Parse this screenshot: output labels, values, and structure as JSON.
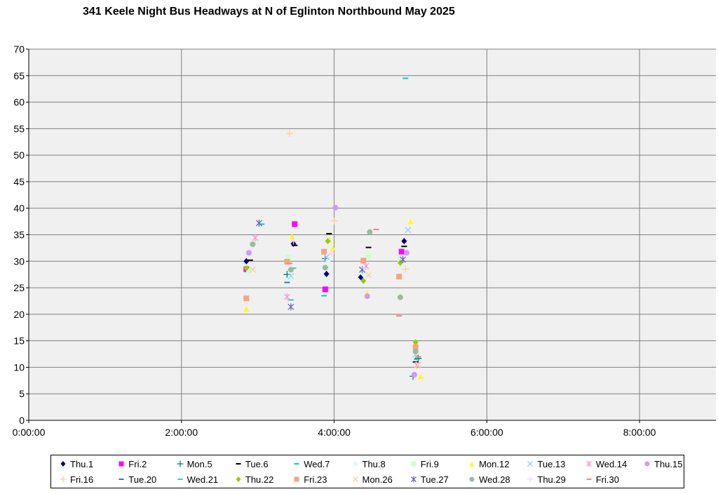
{
  "chart_data": {
    "type": "scatter",
    "title": "341 Keele Night Bus Headways at N of Eglinton Northbound May 2025",
    "xlabel": "",
    "ylabel": "",
    "xlim": [
      "0:00:00",
      "9:00:00"
    ],
    "ylim": [
      0,
      70
    ],
    "x_ticks": [
      "0:00:00",
      "2:00:00",
      "4:00:00",
      "6:00:00",
      "8:00:00"
    ],
    "y_ticks": [
      0,
      5,
      10,
      15,
      20,
      25,
      30,
      35,
      40,
      45,
      50,
      55,
      60,
      65,
      70
    ],
    "grid": true,
    "plot_background": "#f0f0f0",
    "legend_position": "bottom",
    "series": [
      {
        "name": "Thu.1",
        "color": "#000080",
        "marker": "diamond",
        "points": [
          [
            "2:51:00",
            30
          ],
          [
            "3:28:00",
            33.3
          ],
          [
            "3:54:00",
            27.6
          ],
          [
            "4:21:00",
            27
          ],
          [
            "4:55:00",
            33.8
          ]
        ]
      },
      {
        "name": "Fri.2",
        "color": "#ff00ff",
        "marker": "square",
        "points": [
          [
            "2:51:00",
            28.5
          ],
          [
            "3:29:00",
            37
          ],
          [
            "3:53:00",
            24.7
          ],
          [
            "4:53:00",
            31.8
          ]
        ]
      },
      {
        "name": "Mon.5",
        "color": "#008080",
        "marker": "plus",
        "points": [
          [
            "3:23:00",
            27.5
          ],
          [
            "3:53:00",
            30.5
          ],
          [
            "5:02:00",
            8.3
          ],
          [
            "5:06:00",
            11.7
          ]
        ]
      },
      {
        "name": "Tue.6",
        "color": "#000000",
        "marker": "dash",
        "points": [
          [
            "2:54:00",
            30.2
          ],
          [
            "3:29:00",
            33
          ],
          [
            "3:56:00",
            35.2
          ],
          [
            "4:27:00",
            32.6
          ],
          [
            "4:55:00",
            32.8
          ],
          [
            "5:04:00",
            11
          ]
        ]
      },
      {
        "name": "Wed.7",
        "color": "#00cccc",
        "marker": "dash",
        "points": [
          [
            "3:03:00",
            37
          ],
          [
            "3:52:00",
            23.5
          ],
          [
            "4:56:00",
            64.5
          ],
          [
            "5:05:00",
            11.5
          ]
        ]
      },
      {
        "name": "Thu.8",
        "color": "#ccffff",
        "marker": "diamond",
        "points": [
          [
            "3:25:00",
            26.8
          ],
          [
            "3:55:00",
            30
          ],
          [
            "4:23:00",
            27.5
          ]
        ]
      },
      {
        "name": "Fri.9",
        "color": "#ccffcc",
        "marker": "square",
        "points": [
          [
            "2:53:00",
            28.2
          ],
          [
            "3:24:00",
            30.7
          ],
          [
            "4:27:00",
            31
          ],
          [
            "4:52:00",
            30.3
          ]
        ]
      },
      {
        "name": "Mon.12",
        "color": "#ffff00",
        "marker": "triangle",
        "points": [
          [
            "2:51:00",
            21
          ],
          [
            "3:27:00",
            34.7
          ],
          [
            "3:56:00",
            34.1
          ],
          [
            "3:59:00",
            32.5
          ],
          [
            "4:26:00",
            24
          ],
          [
            "5:00:00",
            37.5
          ],
          [
            "5:08:00",
            8.3
          ]
        ]
      },
      {
        "name": "Tue.13",
        "color": "#99ccff",
        "marker": "x",
        "points": [
          [
            "3:26:00",
            27.2
          ],
          [
            "3:54:00",
            30.8
          ],
          [
            "4:58:00",
            35.9
          ],
          [
            "5:04:00",
            12.4
          ]
        ]
      },
      {
        "name": "Wed.14",
        "color": "#ff99cc",
        "marker": "star",
        "points": [
          [
            "2:58:00",
            34.4
          ],
          [
            "3:23:00",
            23.3
          ],
          [
            "4:25:00",
            29.1
          ],
          [
            "5:05:00",
            10.4
          ]
        ]
      },
      {
        "name": "Thu.15",
        "color": "#cc99ff",
        "marker": "circle",
        "points": [
          [
            "2:53:00",
            31.6
          ],
          [
            "4:01:00",
            40.1
          ],
          [
            "4:26:00",
            23.4
          ],
          [
            "4:57:00",
            31.6
          ],
          [
            "5:03:00",
            8.6
          ]
        ]
      },
      {
        "name": "Fri.16",
        "color": "#ffcc99",
        "marker": "plus",
        "points": [
          [
            "3:25:00",
            54.1
          ],
          [
            "4:00:00",
            37.6
          ],
          [
            "4:56:00",
            28.5
          ]
        ]
      },
      {
        "name": "Tue.20",
        "color": "#3366ff",
        "marker": "dash",
        "points": [
          [
            "3:23:00",
            26
          ]
        ]
      },
      {
        "name": "Wed.21",
        "color": "#33cccc",
        "marker": "dash",
        "points": [
          [
            "3:26:00",
            22.7
          ],
          [
            "3:28:00",
            28.7
          ]
        ]
      },
      {
        "name": "Thu.22",
        "color": "#99cc00",
        "marker": "diamond",
        "points": [
          [
            "2:51:00",
            28.7
          ],
          [
            "3:55:00",
            33.8
          ],
          [
            "4:23:00",
            26.3
          ],
          [
            "4:52:00",
            29.7
          ],
          [
            "5:04:00",
            14.7
          ]
        ]
      },
      {
        "name": "Fri.23",
        "color": "#f4a582",
        "marker": "square",
        "points": [
          [
            "2:51:00",
            23
          ],
          [
            "3:23:00",
            29.9
          ],
          [
            "3:52:00",
            31.8
          ],
          [
            "4:23:00",
            30.1
          ],
          [
            "4:51:00",
            27.1
          ],
          [
            "5:04:00",
            13.8
          ]
        ]
      },
      {
        "name": "Mon.26",
        "color": "#ffcc99",
        "marker": "x",
        "points": [
          [
            "2:56:00",
            28.4
          ],
          [
            "4:27:00",
            27.4
          ],
          [
            "5:06:00",
            10.5
          ]
        ]
      },
      {
        "name": "Tue.27",
        "color": "#6666cc",
        "marker": "star",
        "points": [
          [
            "3:01:00",
            37.2
          ],
          [
            "3:26:00",
            21.4
          ],
          [
            "4:22:00",
            28.4
          ],
          [
            "4:54:00",
            30.3
          ]
        ]
      },
      {
        "name": "Wed.28",
        "color": "#99bb99",
        "marker": "circle",
        "points": [
          [
            "2:56:00",
            33.2
          ],
          [
            "3:26:00",
            28.4
          ],
          [
            "3:53:00",
            28.8
          ],
          [
            "4:28:00",
            35.5
          ],
          [
            "4:52:00",
            23.2
          ],
          [
            "5:04:00",
            13
          ]
        ]
      },
      {
        "name": "Thu.29",
        "color": "#ffccff",
        "marker": "plus",
        "points": [
          [
            "3:28:00",
            33.8
          ],
          [
            "3:58:00",
            31.5
          ],
          [
            "4:24:00",
            28.7
          ]
        ]
      },
      {
        "name": "Fri.30",
        "color": "#ff8080",
        "marker": "dash",
        "points": [
          [
            "3:25:00",
            29.6
          ],
          [
            "4:33:00",
            36
          ],
          [
            "4:51:00",
            19.7
          ],
          [
            "5:06:00",
            12
          ]
        ]
      }
    ]
  }
}
